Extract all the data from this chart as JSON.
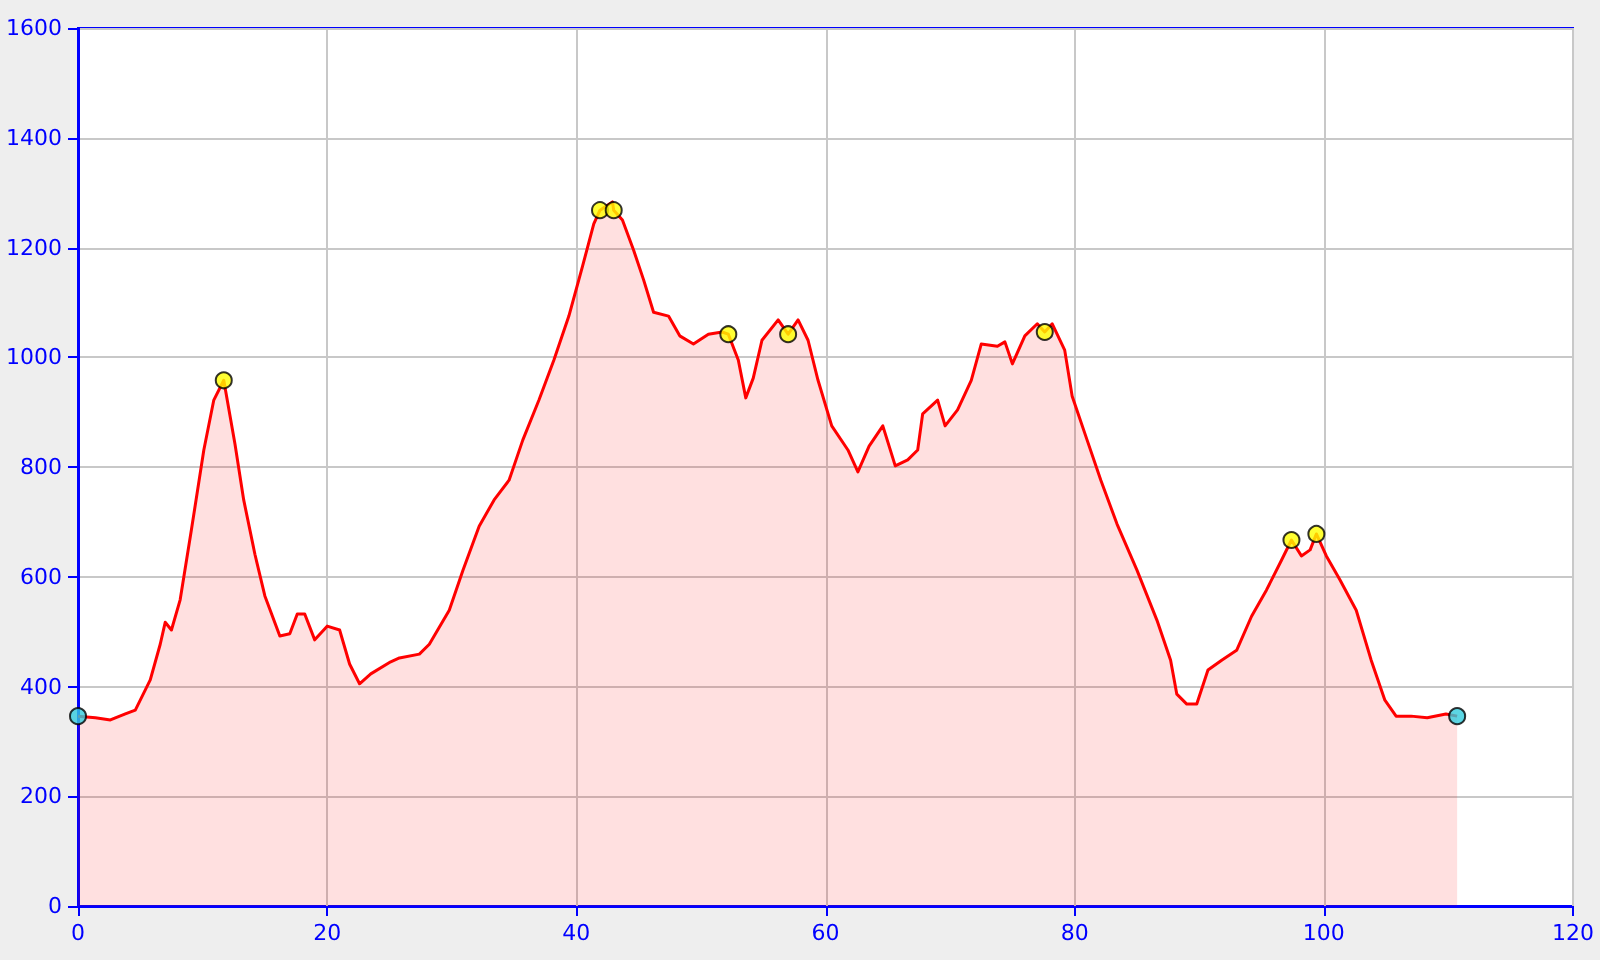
{
  "chart_data": {
    "type": "area",
    "xlim": [
      0,
      120
    ],
    "xticks": [
      0,
      20,
      40,
      60,
      80,
      100,
      120
    ],
    "ylim": [
      0,
      1600
    ],
    "yticks": [
      0,
      200,
      400,
      600,
      800,
      1000,
      1200,
      1400,
      1600
    ],
    "grid": true,
    "series": [
      {
        "color": "#ff0000",
        "marker": "none",
        "x": [
          0,
          1.4,
          2.6,
          3.8,
          4.6,
          5.8,
          6.6,
          7.0,
          7.5,
          8.2,
          9.1,
          10.1,
          10.9,
          11.7,
          12.6,
          13.3,
          14.2,
          15.0,
          16.2,
          17.0,
          17.6,
          18.2,
          19.0,
          20.0,
          21.0,
          21.8,
          22.6,
          23.5,
          25.1,
          25.8,
          27.4,
          28.2,
          29.8,
          30.9,
          32.2,
          33.4,
          34.6,
          35.7,
          37.0,
          38.2,
          39.4,
          40.5,
          41.4,
          41.9,
          42.9,
          43.0,
          43.7,
          44.6,
          45.4,
          46.2,
          47.4,
          48.3,
          49.4,
          50.6,
          51.7,
          52.2,
          53.0,
          53.6,
          54.2,
          54.9,
          56.2,
          57.0,
          57.8,
          58.6,
          59.4,
          60.5,
          61.8,
          62.6,
          63.5,
          64.6,
          65.6,
          66.6,
          67.4,
          67.8,
          69.0,
          69.6,
          70.6,
          71.7,
          72.5,
          73.8,
          74.4,
          75.0,
          76.0,
          77.0,
          77.6,
          78.2,
          79.2,
          79.8,
          81.0,
          82.1,
          83.4,
          85.0,
          86.6,
          87.7,
          88.2,
          89.0,
          89.8,
          90.7,
          91.8,
          93.0,
          94.2,
          95.4,
          96.6,
          97.4,
          98.2,
          98.9,
          99.4,
          100.2,
          101.3,
          102.6,
          103.8,
          104.9,
          105.8,
          107.0,
          108.3,
          109.8,
          110.7
        ],
        "values": [
          346,
          343,
          339,
          350,
          357,
          412,
          477,
          517,
          503,
          558,
          685,
          831,
          922,
          958,
          842,
          740,
          641,
          565,
          492,
          496,
          532,
          532,
          485,
          510,
          503,
          441,
          405,
          423,
          445,
          452,
          459,
          477,
          539,
          612,
          692,
          740,
          776,
          849,
          922,
          995,
          1075,
          1166,
          1243,
          1268,
          1283,
          1268,
          1250,
          1195,
          1141,
          1082,
          1075,
          1039,
          1024,
          1042,
          1046,
          1042,
          995,
          926,
          962,
          1031,
          1068,
          1042,
          1068,
          1031,
          958,
          875,
          831,
          791,
          838,
          875,
          802,
          813,
          831,
          897,
          922,
          875,
          904,
          958,
          1024,
          1020,
          1028,
          988,
          1039,
          1061,
          1046,
          1061,
          1013,
          929,
          849,
          776,
          696,
          612,
          521,
          448,
          386,
          368,
          368,
          430,
          448,
          466,
          528,
          576,
          630,
          667,
          638,
          649,
          678,
          638,
          594,
          539,
          448,
          375,
          346,
          346,
          343,
          350,
          346
        ]
      },
      {
        "type": "scatter",
        "marker": "circle",
        "x": [
          0,
          11.7,
          41.9,
          43.0,
          52.2,
          57.0,
          77.6,
          97.4,
          99.4,
          110.7
        ],
        "values": [
          346,
          958,
          1268,
          1268,
          1042,
          1042,
          1046,
          667,
          678,
          346
        ],
        "colors": [
          "#33ccdd",
          "#ffff00",
          "#ffff00",
          "#ffff00",
          "#ffff00",
          "#ffff00",
          "#ffff00",
          "#ffff00",
          "#ffff00",
          "#33ccdd"
        ]
      }
    ]
  }
}
